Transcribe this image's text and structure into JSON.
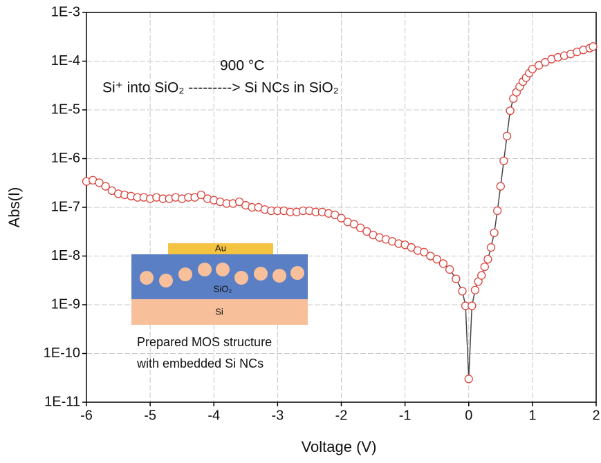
{
  "chart_data": {
    "type": "line",
    "xlabel": "Voltage (V)",
    "ylabel": "Abs(I)",
    "x": [
      -6,
      -5.9,
      -5.8,
      -5.7,
      -5.6,
      -5.5,
      -5.4,
      -5.3,
      -5.2,
      -5.1,
      -5,
      -4.9,
      -4.8,
      -4.7,
      -4.6,
      -4.5,
      -4.4,
      -4.3,
      -4.2,
      -4.1,
      -4,
      -3.9,
      -3.8,
      -3.7,
      -3.6,
      -3.5,
      -3.4,
      -3.3,
      -3.2,
      -3.1,
      -3,
      -2.9,
      -2.8,
      -2.7,
      -2.6,
      -2.5,
      -2.4,
      -2.3,
      -2.2,
      -2.1,
      -2,
      -1.9,
      -1.8,
      -1.7,
      -1.6,
      -1.5,
      -1.4,
      -1.3,
      -1.2,
      -1.1,
      -1,
      -0.9,
      -0.8,
      -0.7,
      -0.6,
      -0.5,
      -0.4,
      -0.3,
      -0.2,
      -0.1,
      -0.05,
      0,
      0.05,
      0.1,
      0.15,
      0.2,
      0.25,
      0.3,
      0.35,
      0.4,
      0.45,
      0.5,
      0.55,
      0.6,
      0.65,
      0.7,
      0.75,
      0.8,
      0.85,
      0.9,
      0.95,
      1,
      1.1,
      1.2,
      1.3,
      1.4,
      1.5,
      1.6,
      1.7,
      1.8,
      1.9,
      1.95
    ],
    "series": [
      {
        "color": "#d9443c",
        "line_color": "#444444",
        "values": [
          3.4e-07,
          3.6e-07,
          3.2e-07,
          2.7e-07,
          2.2e-07,
          1.9e-07,
          1.8e-07,
          1.7e-07,
          1.6e-07,
          1.6e-07,
          1.5e-07,
          1.6e-07,
          1.5e-07,
          1.5e-07,
          1.6e-07,
          1.5e-07,
          1.6e-07,
          1.6e-07,
          1.8e-07,
          1.5e-07,
          1.4e-07,
          1.3e-07,
          1.2e-07,
          1.2e-07,
          1.3e-07,
          1.1e-07,
          1e-07,
          1e-07,
          9e-08,
          8.5e-08,
          8.5e-08,
          8.5e-08,
          8e-08,
          8e-08,
          8.5e-08,
          8.5e-08,
          8e-08,
          8e-08,
          7.5e-08,
          7e-08,
          6e-08,
          5e-08,
          4.5e-08,
          3.8e-08,
          3.2e-08,
          2.7e-08,
          2.4e-08,
          2.2e-08,
          2e-08,
          1.8e-08,
          1.7e-08,
          1.5e-08,
          1.3e-08,
          1.2e-08,
          1e-08,
          8.6e-09,
          7e-09,
          5.3e-09,
          3.4e-09,
          1.9e-09,
          9.5e-10,
          3e-11,
          9.5e-10,
          2e-09,
          3e-09,
          4e-09,
          6e-09,
          8.6e-09,
          1.5e-08,
          3e-08,
          8.5e-08,
          2.7e-07,
          9e-07,
          2.9e-06,
          9.6e-06,
          1.7e-05,
          2.3e-05,
          3e-05,
          3.8e-05,
          4.6e-05,
          5.7e-05,
          6.9e-05,
          8.2e-05,
          9.5e-05,
          0.00011,
          0.00012,
          0.00013,
          0.00014,
          0.000155,
          0.00017,
          0.000185,
          0.0002
        ]
      }
    ],
    "xlim": [
      -6,
      2
    ],
    "xticks": [
      -6,
      -5,
      -4,
      -3,
      -2,
      -1,
      0,
      1,
      2
    ],
    "ylim": [
      1e-11,
      0.001
    ],
    "ylog": true,
    "yticks": [
      {
        "value": 1e-11,
        "label": "1E-11"
      },
      {
        "value": 1e-10,
        "label": "1E-10"
      },
      {
        "value": 1e-09,
        "label": "1E-9"
      },
      {
        "value": 1e-08,
        "label": "1E-8"
      },
      {
        "value": 1e-07,
        "label": "1E-7"
      },
      {
        "value": 1e-06,
        "label": "1E-6"
      },
      {
        "value": 1e-05,
        "label": "1E-5"
      },
      {
        "value": 0.0001,
        "label": "1E-4"
      },
      {
        "value": 0.001,
        "label": "1E-3"
      }
    ],
    "grid": true,
    "annotations": [
      "900 °C",
      "Si⁺ into SiO₂ ---------> Si NCs in SiO₂"
    ],
    "inset": {
      "top_layer": "Au",
      "middle_layer": "SiO₂",
      "bottom_layer": "Si",
      "caption": [
        "Prepared MOS structure",
        "with embedded Si NCs"
      ]
    }
  }
}
